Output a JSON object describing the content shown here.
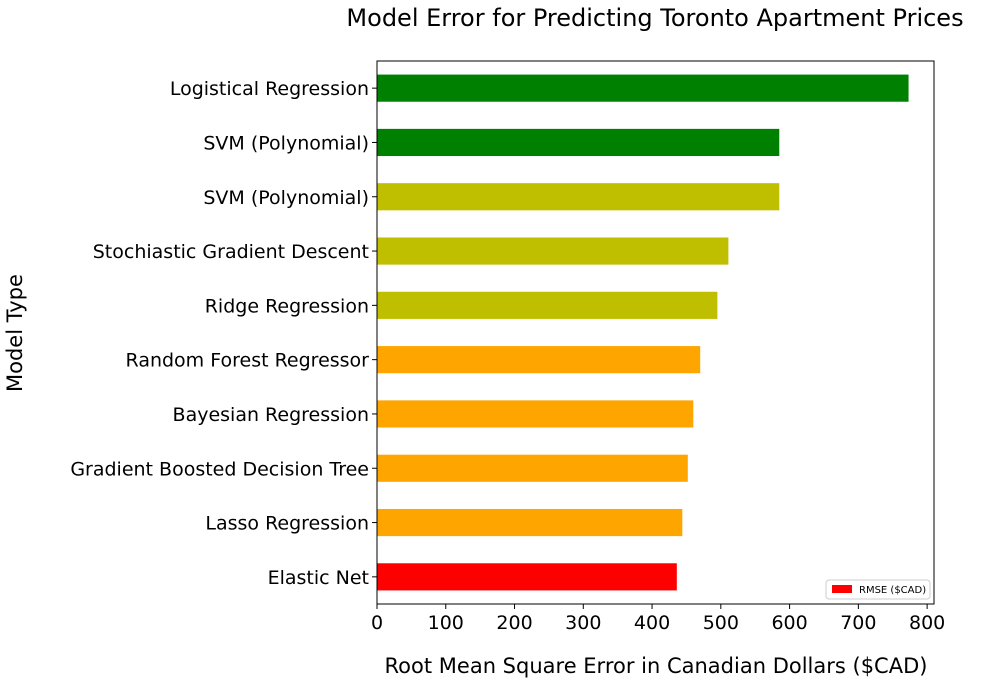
{
  "chart_data": {
    "type": "bar",
    "orientation": "horizontal",
    "title": "Model Error for Predicting Toronto Apartment Prices",
    "xlabel": "Root Mean Square Error in Canadian Dollars ($CAD)",
    "ylabel": "Model Type",
    "xlim": [
      0,
      810
    ],
    "xticks": [
      0,
      100,
      200,
      300,
      400,
      500,
      600,
      700,
      800
    ],
    "grid": false,
    "legend": {
      "position": "lower-right",
      "entries": [
        {
          "label": "RMSE ($CAD)",
          "color": "#ff0000"
        }
      ]
    },
    "categories": [
      "Elastic Net",
      "Lasso Regression",
      "Gradient Boosted Decision Tree",
      "Bayesian Regression",
      "Random Forest Regressor",
      "Ridge Regression",
      "Stochiastic Gradient Descent",
      "SVM (Polynomial)",
      "SVM (Polynomial)",
      "Logistical Regression"
    ],
    "values": [
      436,
      444,
      452,
      460,
      470,
      495,
      511,
      585,
      585,
      773
    ],
    "colors": [
      "#ff0000",
      "#ffa500",
      "#ffa500",
      "#ffa500",
      "#ffa500",
      "#bfbf00",
      "#bfbf00",
      "#bfbf00",
      "#008000",
      "#008000"
    ]
  }
}
